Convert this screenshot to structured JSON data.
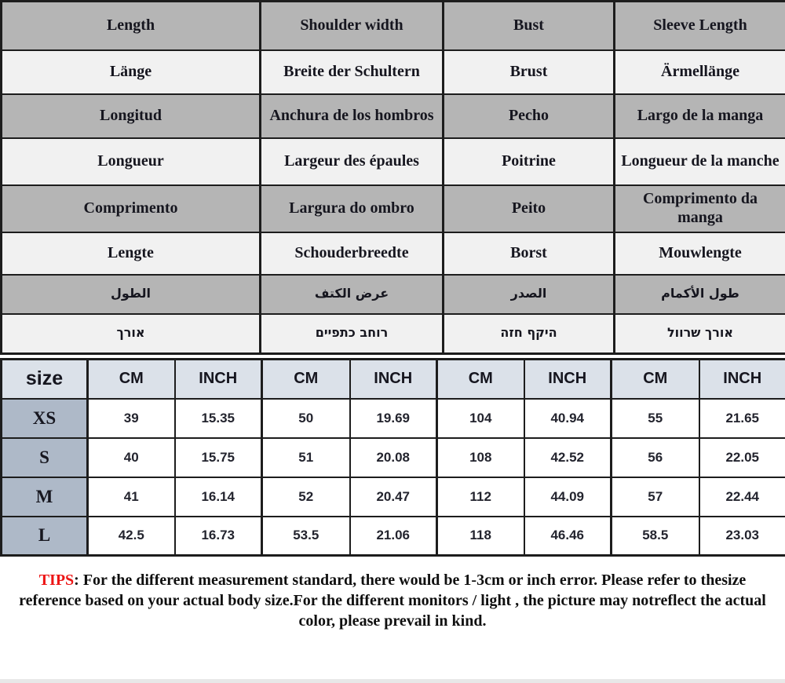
{
  "colors": {
    "header_gray": "#b5b5b5",
    "row_light": "#f1f1f1",
    "size_header_bg": "#dbe1e9",
    "size_label_bg": "#aeb9c8",
    "border": "#1d1d1d",
    "text_dark": "#16161f",
    "number_dark": "#23242e",
    "tips_red": "#ed1515",
    "bottom_strip": "#e8e8e8"
  },
  "language_table": {
    "measure_columns": [
      "length",
      "shoulder-width",
      "bust",
      "sleeve-length"
    ],
    "rows": [
      {
        "lang": "english",
        "shade": "gray",
        "rtl": false,
        "cells": [
          "Length",
          "Shoulder width",
          "Bust",
          "Sleeve Length"
        ]
      },
      {
        "lang": "german",
        "shade": "light",
        "rtl": false,
        "cells": [
          "Länge",
          "Breite der Schultern",
          "Brust",
          "Ärmellänge"
        ]
      },
      {
        "lang": "spanish",
        "shade": "gray",
        "rtl": false,
        "cells": [
          "Longitud",
          "Anchura de los hombros",
          "Pecho",
          "Largo de la manga"
        ]
      },
      {
        "lang": "french",
        "shade": "light",
        "rtl": false,
        "cells": [
          "Longueur",
          "Largeur des épaules",
          "Poitrine",
          "Longueur de la manche"
        ]
      },
      {
        "lang": "portuguese",
        "shade": "gray",
        "rtl": false,
        "cells": [
          "Comprimento",
          "Largura do ombro",
          "Peito",
          "Comprimento da manga"
        ]
      },
      {
        "lang": "dutch",
        "shade": "light",
        "rtl": false,
        "cells": [
          "Lengte",
          "Schouderbreedte",
          "Borst",
          "Mouwlengte"
        ]
      },
      {
        "lang": "arabic",
        "shade": "gray",
        "rtl": true,
        "cells": [
          "الطول",
          "عرض الكتف",
          "الصدر",
          "طول الأكمام"
        ]
      },
      {
        "lang": "hebrew",
        "shade": "light",
        "rtl": true,
        "cells": [
          "אורך",
          "רוחב כתפיים",
          "היקף חזה",
          "אורך שרוול"
        ]
      }
    ]
  },
  "size_table": {
    "header": [
      "size",
      "CM",
      "INCH",
      "CM",
      "INCH",
      "CM",
      "INCH",
      "CM",
      "INCH"
    ],
    "rows": [
      {
        "size": "XS",
        "values": [
          "39",
          "15.35",
          "50",
          "19.69",
          "104",
          "40.94",
          "55",
          "21.65"
        ]
      },
      {
        "size": "S",
        "values": [
          "40",
          "15.75",
          "51",
          "20.08",
          "108",
          "42.52",
          "56",
          "22.05"
        ]
      },
      {
        "size": "M",
        "values": [
          "41",
          "16.14",
          "52",
          "20.47",
          "112",
          "44.09",
          "57",
          "22.44"
        ]
      },
      {
        "size": "L",
        "values": [
          "42.5",
          "16.73",
          "53.5",
          "21.06",
          "118",
          "46.46",
          "58.5",
          "23.03"
        ]
      }
    ]
  },
  "tips": {
    "label": "TIPS",
    "text": ": For the different measurement standard, there would be 1-3cm or inch error. Please refer to thesize reference based on your actual body size.For the different monitors / light , the picture may notreflect the actual color, please prevail in kind."
  }
}
